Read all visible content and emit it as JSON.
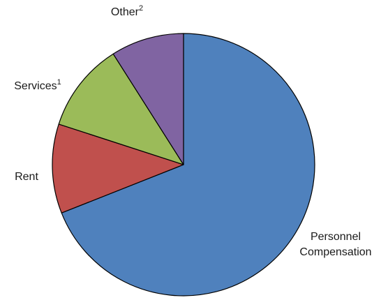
{
  "chart_data": {
    "type": "pie",
    "slices": [
      {
        "label": "Personnel Compensation",
        "label_lines": [
          "Personnel",
          "Compensation"
        ],
        "sup": "",
        "value": 69,
        "color": "#4f81bd"
      },
      {
        "label": "Rent",
        "label_lines": [
          "Rent"
        ],
        "sup": "",
        "value": 11,
        "color": "#c0504d"
      },
      {
        "label": "Services",
        "label_lines": [
          "Services"
        ],
        "sup": "1",
        "value": 11,
        "color": "#9bbb59"
      },
      {
        "label": "Other",
        "label_lines": [
          "Other"
        ],
        "sup": "2",
        "value": 9,
        "color": "#8064a2"
      }
    ],
    "start": "12 o'clock",
    "direction": "clockwise",
    "legend": "none",
    "title": ""
  }
}
